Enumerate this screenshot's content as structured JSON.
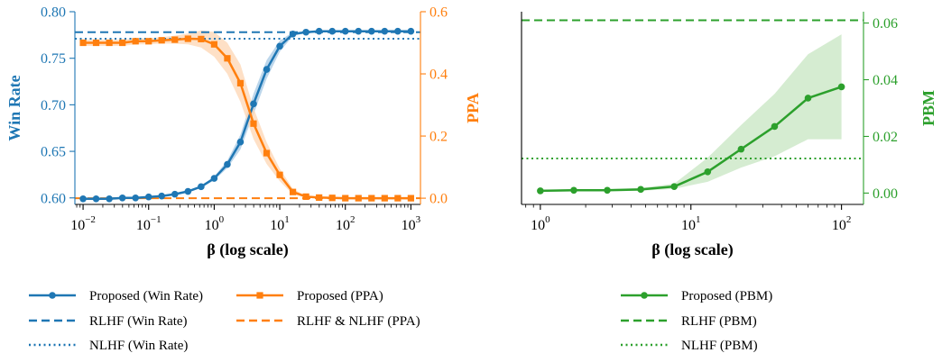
{
  "colors": {
    "blue": "#1f77b4",
    "orange": "#ff7f0e",
    "green": "#2ca02c",
    "blue_band": "#a6c8e4",
    "orange_band": "#fdd6b3",
    "green_band": "#c7e6c2"
  },
  "chart_data": [
    {
      "type": "line",
      "xlabel": "β (log scale)",
      "xscale": "log",
      "xlim": [
        0.0075,
        1400
      ],
      "xticks": [
        {
          "value": 0.01,
          "base": "10",
          "exp": "−2"
        },
        {
          "value": 0.1,
          "base": "10",
          "exp": "−1"
        },
        {
          "value": 1,
          "base": "10",
          "exp": "0"
        },
        {
          "value": 10,
          "base": "10",
          "exp": "1"
        },
        {
          "value": 100,
          "base": "10",
          "exp": "2"
        },
        {
          "value": 1000,
          "base": "10",
          "exp": "3"
        }
      ],
      "left_axis": {
        "label": "Win Rate",
        "color": "#1f77b4",
        "ylim": [
          0.593,
          0.8
        ],
        "ticks": [
          "0.60",
          "0.65",
          "0.70",
          "0.75",
          "0.80"
        ],
        "tick_values": [
          0.6,
          0.65,
          0.7,
          0.75,
          0.8
        ]
      },
      "right_axis": {
        "label": "PPA",
        "color": "#ff7f0e",
        "ylim": [
          -0.02,
          0.6
        ],
        "ticks": [
          "0.0",
          "0.2",
          "0.4",
          "0.6"
        ],
        "tick_values": [
          0.0,
          0.2,
          0.4,
          0.6
        ]
      },
      "x": [
        0.01,
        0.0158,
        0.0251,
        0.0398,
        0.0631,
        0.1,
        0.158,
        0.251,
        0.398,
        0.631,
        1.0,
        1.585,
        2.512,
        3.981,
        6.31,
        10.0,
        15.85,
        25.12,
        39.81,
        63.1,
        100,
        158.5,
        251.2,
        398.1,
        631,
        1000
      ],
      "series": [
        {
          "name": "Proposed (Win Rate)",
          "axis": "left",
          "color": "#1f77b4",
          "marker": "circle",
          "values": [
            0.599,
            0.599,
            0.599,
            0.6,
            0.6,
            0.601,
            0.602,
            0.604,
            0.607,
            0.612,
            0.621,
            0.636,
            0.66,
            0.701,
            0.738,
            0.763,
            0.776,
            0.778,
            0.779,
            0.779,
            0.779,
            0.779,
            0.779,
            0.779,
            0.779,
            0.779
          ],
          "band": {
            "lower": [
              0.599,
              0.599,
              0.599,
              0.6,
              0.6,
              0.601,
              0.602,
              0.604,
              0.606,
              0.611,
              0.619,
              0.632,
              0.652,
              0.69,
              0.728,
              0.757,
              0.774,
              0.777,
              0.779,
              0.779,
              0.779,
              0.779,
              0.779,
              0.779,
              0.779,
              0.779
            ],
            "upper": [
              0.599,
              0.599,
              0.599,
              0.6,
              0.6,
              0.601,
              0.602,
              0.604,
              0.608,
              0.613,
              0.623,
              0.64,
              0.668,
              0.712,
              0.748,
              0.769,
              0.778,
              0.779,
              0.779,
              0.779,
              0.779,
              0.779,
              0.779,
              0.779,
              0.779,
              0.779
            ]
          }
        },
        {
          "name": "Proposed (PPA)",
          "axis": "right",
          "color": "#ff7f0e",
          "marker": "square",
          "values": [
            0.5,
            0.5,
            0.5,
            0.5,
            0.505,
            0.505,
            0.508,
            0.51,
            0.513,
            0.512,
            0.495,
            0.45,
            0.37,
            0.24,
            0.145,
            0.075,
            0.02,
            0.005,
            0.002,
            0.001,
            0.0,
            0.0,
            0.0,
            0.0,
            0.0,
            0.0
          ],
          "band": {
            "lower": [
              0.49,
              0.49,
              0.49,
              0.49,
              0.495,
              0.495,
              0.498,
              0.497,
              0.495,
              0.485,
              0.455,
              0.4,
              0.31,
              0.19,
              0.11,
              0.055,
              0.012,
              0.002,
              0.0,
              0.0,
              0.0,
              0.0,
              0.0,
              0.0,
              0.0,
              0.0
            ],
            "upper": [
              0.51,
              0.51,
              0.51,
              0.51,
              0.515,
              0.515,
              0.518,
              0.523,
              0.53,
              0.54,
              0.535,
              0.5,
              0.43,
              0.29,
              0.18,
              0.095,
              0.03,
              0.008,
              0.004,
              0.002,
              0.0,
              0.0,
              0.0,
              0.0,
              0.0,
              0.0
            ]
          }
        }
      ],
      "reference_lines": [
        {
          "name": "RLHF (Win Rate)",
          "axis": "left",
          "value": 0.778,
          "style": "dashed",
          "color": "#1f77b4"
        },
        {
          "name": "NLHF (Win Rate)",
          "axis": "left",
          "value": 0.771,
          "style": "dotted",
          "color": "#1f77b4"
        },
        {
          "name": "RLHF & NLHF (PPA)",
          "axis": "right",
          "value": 0.0,
          "style": "dashed",
          "color": "#ff7f0e"
        }
      ],
      "legend": {
        "placement": "below",
        "entries": [
          {
            "label": "Proposed (Win Rate)",
            "color": "#1f77b4",
            "style": "solid",
            "marker": "circle"
          },
          {
            "label": "Proposed (PPA)",
            "color": "#ff7f0e",
            "style": "solid",
            "marker": "square"
          },
          {
            "label": "RLHF (Win Rate)",
            "color": "#1f77b4",
            "style": "dashed"
          },
          {
            "label": "RLHF & NLHF (PPA)",
            "color": "#ff7f0e",
            "style": "dashed"
          },
          {
            "label": "NLHF (Win Rate)",
            "color": "#1f77b4",
            "style": "dotted"
          }
        ]
      }
    },
    {
      "type": "line",
      "xlabel": "β (log scale)",
      "xscale": "log",
      "xlim": [
        0.75,
        140
      ],
      "xticks": [
        {
          "value": 1,
          "base": "10",
          "exp": "0"
        },
        {
          "value": 10,
          "base": "10",
          "exp": "1"
        },
        {
          "value": 100,
          "base": "10",
          "exp": "2"
        }
      ],
      "left_axis": null,
      "right_axis": {
        "label": "PBM",
        "color": "#2ca02c",
        "ylim": [
          -0.004,
          0.064
        ],
        "ticks": [
          "0.00",
          "0.02",
          "0.04",
          "0.06"
        ],
        "tick_values": [
          0.0,
          0.02,
          0.04,
          0.06
        ]
      },
      "x": [
        1.0,
        1.668,
        2.783,
        4.642,
        7.743,
        12.92,
        21.54,
        35.94,
        59.95,
        100
      ],
      "series": [
        {
          "name": "Proposed (PBM)",
          "axis": "right",
          "color": "#2ca02c",
          "marker": "circle",
          "values": [
            0.0008,
            0.001,
            0.001,
            0.0013,
            0.0023,
            0.0075,
            0.0155,
            0.0235,
            0.0335,
            0.0375
          ],
          "band": {
            "lower": [
              0.0005,
              0.0006,
              0.0006,
              0.0008,
              0.0015,
              0.004,
              0.009,
              0.013,
              0.019,
              0.019
            ],
            "upper": [
              0.0011,
              0.0014,
              0.0014,
              0.0018,
              0.0033,
              0.0125,
              0.024,
              0.035,
              0.049,
              0.056
            ]
          }
        }
      ],
      "reference_lines": [
        {
          "name": "RLHF (PBM)",
          "axis": "right",
          "value": 0.061,
          "style": "dashed",
          "color": "#2ca02c"
        },
        {
          "name": "NLHF (PBM)",
          "axis": "right",
          "value": 0.0122,
          "style": "dotted",
          "color": "#2ca02c"
        }
      ],
      "legend": {
        "placement": "below",
        "entries": [
          {
            "label": "Proposed (PBM)",
            "color": "#2ca02c",
            "style": "solid",
            "marker": "circle"
          },
          {
            "label": "RLHF (PBM)",
            "color": "#2ca02c",
            "style": "dashed"
          },
          {
            "label": "NLHF (PBM)",
            "color": "#2ca02c",
            "style": "dotted"
          }
        ]
      }
    }
  ]
}
